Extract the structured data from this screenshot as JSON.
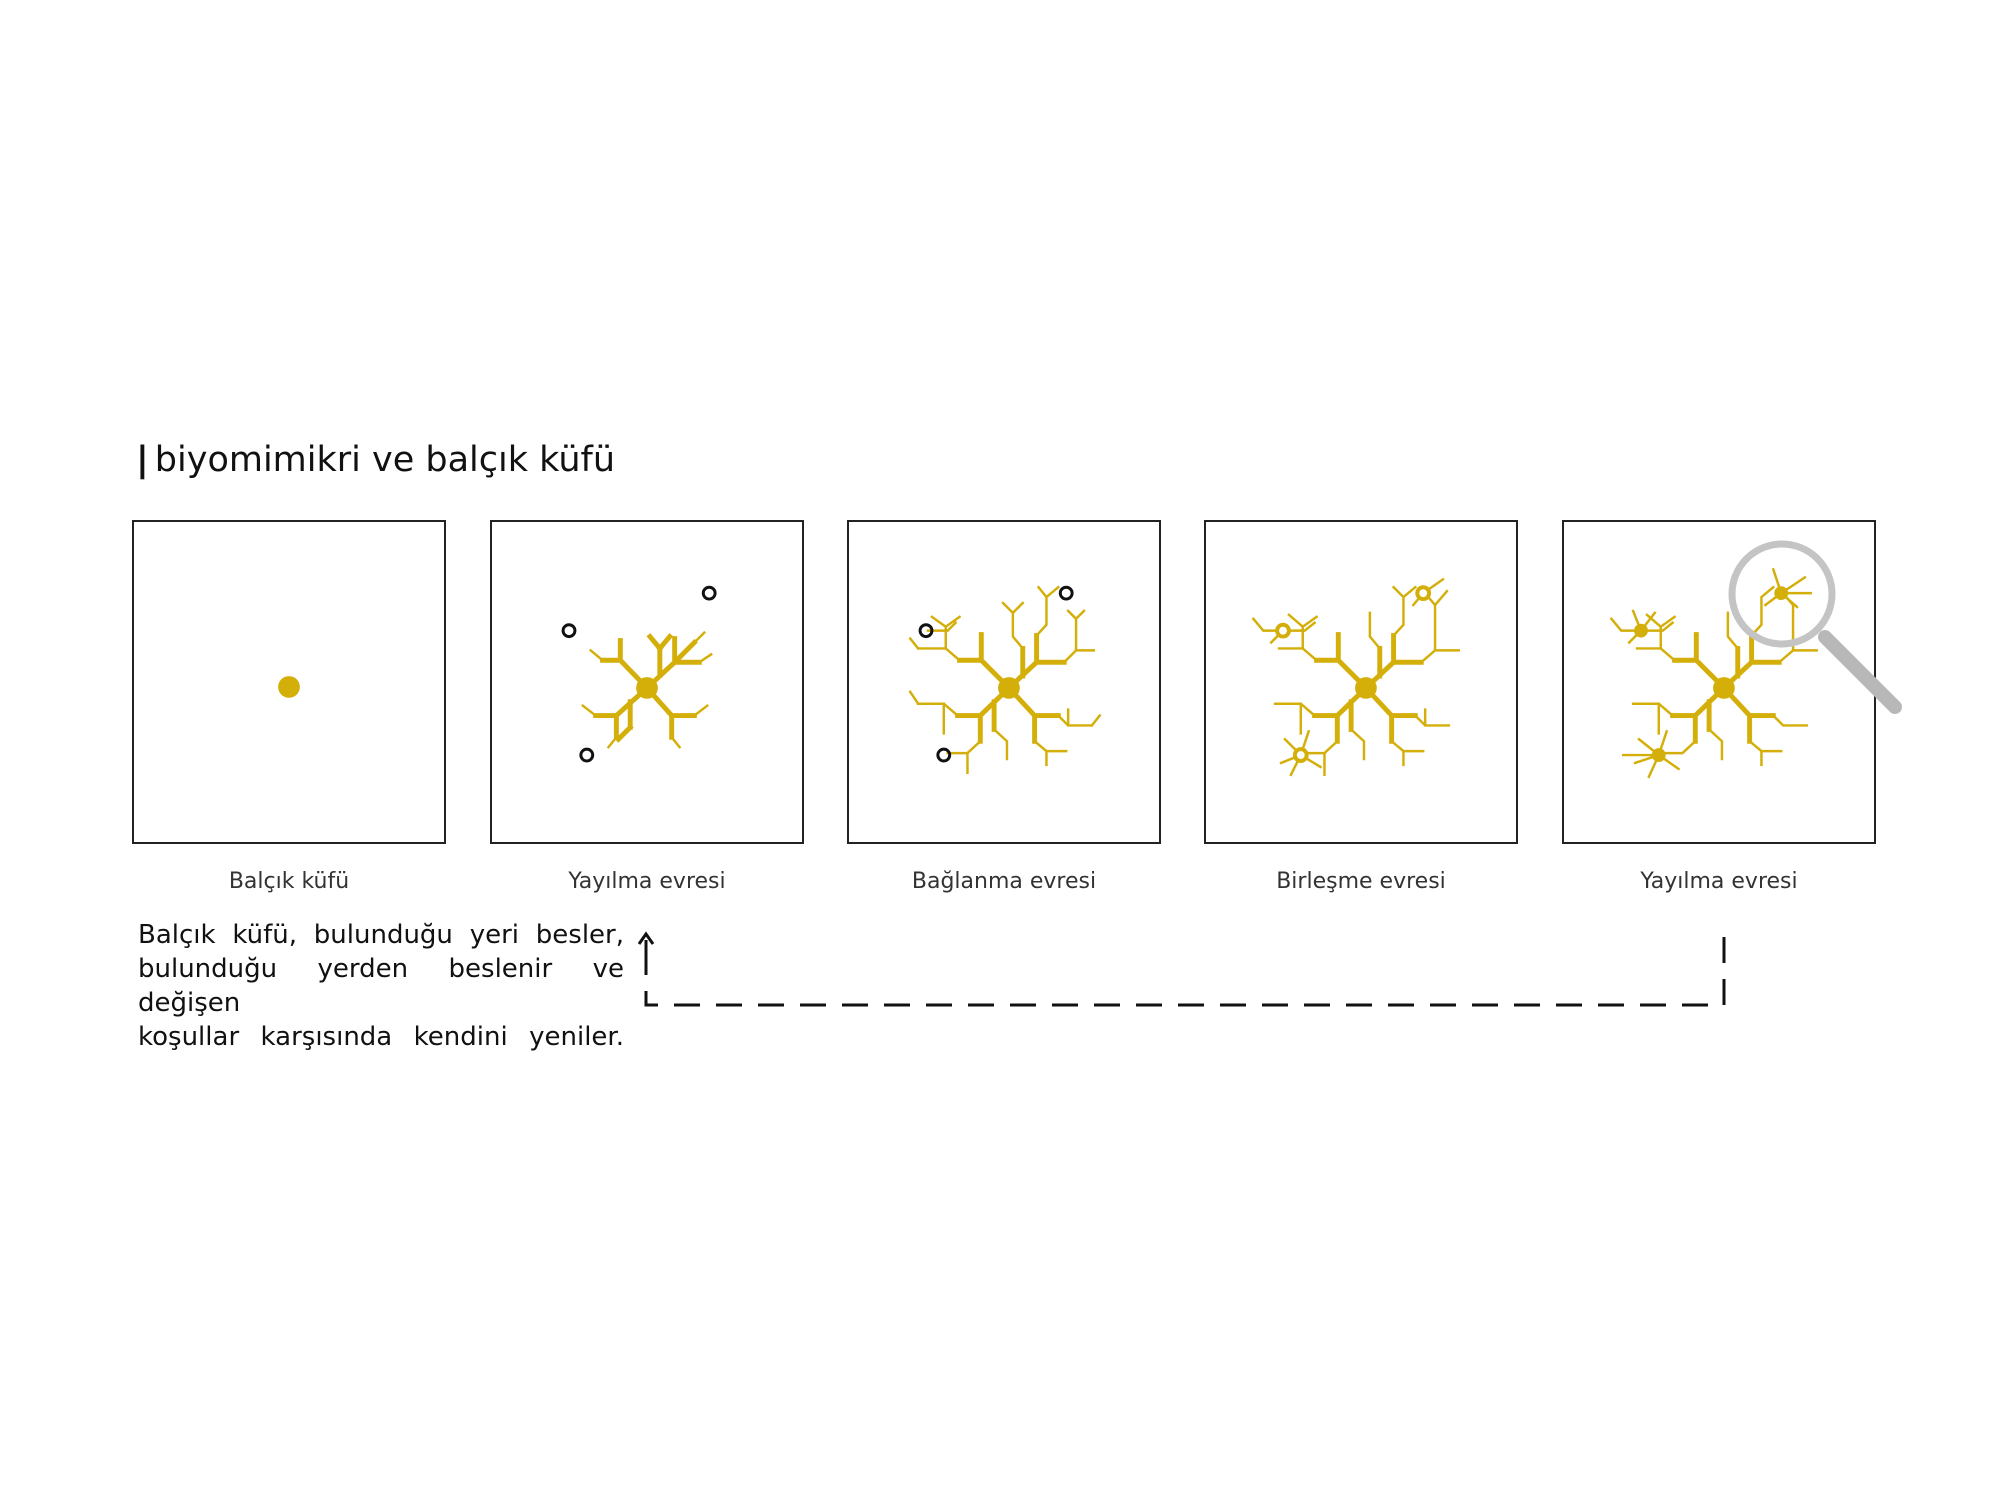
{
  "title": "biyomimikri ve balçık küfü",
  "colors": {
    "mold": "#d4af0a",
    "food_source": "#111111",
    "frame": "#222222",
    "magnifier": "#b8b8b8"
  },
  "panels": [
    {
      "caption": "Balçık küfü"
    },
    {
      "caption": "Yayılma evresi"
    },
    {
      "caption": "Bağlanma evresi"
    },
    {
      "caption": "Birleşme evresi"
    },
    {
      "caption": "Yayılma evresi"
    }
  ],
  "description": {
    "line1": "Balçık küfü, bulunduğu yeri besler,",
    "line2": "bulunduğu yerden beslenir ve değişen",
    "line3": "koşullar karşısında kendini yeniler."
  },
  "icons": {
    "loop_arrow": "dashed-return-arrow-icon",
    "magnifier": "magnifier-icon"
  }
}
